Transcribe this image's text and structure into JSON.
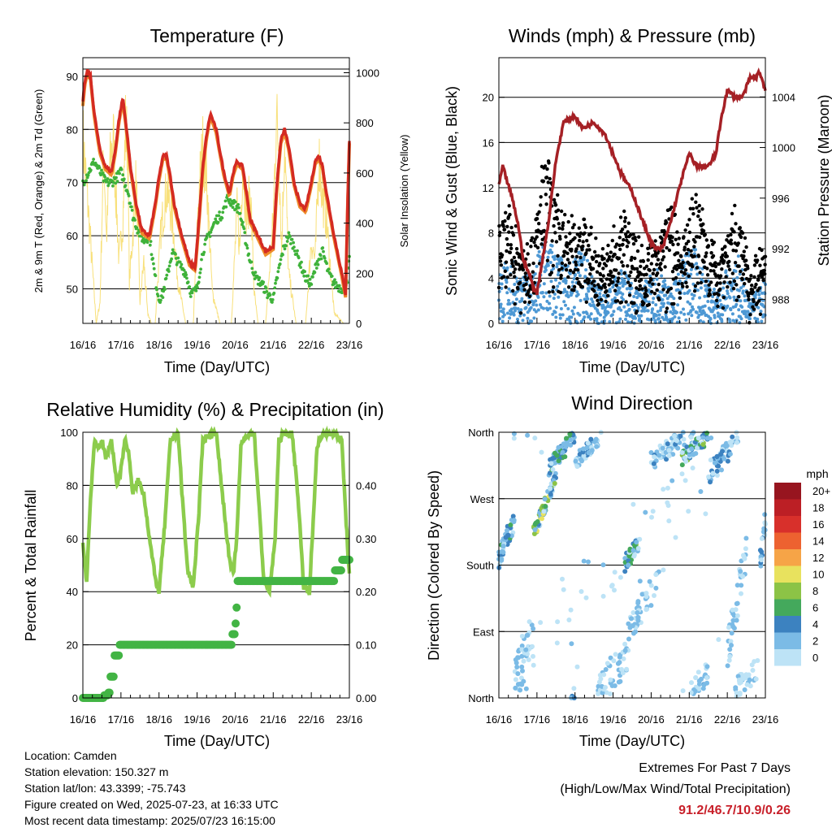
{
  "x_ticks": [
    "16/16",
    "17/16",
    "18/16",
    "19/16",
    "20/16",
    "21/16",
    "22/16",
    "23/16"
  ],
  "colors": {
    "temp_2m": "#d42a22",
    "temp_9m": "#ee8a2a",
    "dewpoint": "#3fb23a",
    "insolation": "#f8e07a",
    "wind_speed": "#4d98d4",
    "wind_gust": "#000000",
    "pressure": "#a52025",
    "humidity": "#8ccc4c",
    "rainfall": "#42b444"
  },
  "chart_data": [
    {
      "id": "temperature",
      "type": "line",
      "title": "Temperature (F)",
      "xlabel": "Time (Day/UTC)",
      "ylabel": "2m & 9m T (Red, Orange) & 2m Td (Green)",
      "y2label": "Solar Insolation (Yellow)",
      "ylim": [
        43.5,
        93.5
      ],
      "yticks": [
        50,
        60,
        70,
        80,
        90
      ],
      "y2lim": [
        0,
        1060
      ],
      "y2ticks": [
        0,
        200,
        400,
        600,
        800,
        1000
      ],
      "xlim": [
        0,
        7
      ],
      "grid": true,
      "series": [
        {
          "key": "t2m",
          "x": [
            0,
            0.05,
            0.12,
            0.2,
            0.3,
            0.45,
            0.6,
            0.75,
            0.85,
            0.95,
            1.05,
            1.15,
            1.25,
            1.4,
            1.55,
            1.75,
            1.9,
            2.0,
            2.1,
            2.2,
            2.3,
            2.4,
            2.6,
            2.8,
            2.95,
            3.05,
            3.15,
            3.25,
            3.35,
            3.5,
            3.7,
            3.85,
            3.95,
            4.05,
            4.2,
            4.3,
            4.4,
            4.6,
            4.8,
            5.0,
            5.1,
            5.2,
            5.3,
            5.4,
            5.55,
            5.7,
            5.85,
            6.0,
            6.1,
            6.2,
            6.3,
            6.4,
            6.6,
            6.8,
            6.9,
            6.95,
            7.0
          ],
          "y": [
            85,
            89,
            91,
            90,
            83,
            76,
            73,
            72,
            76,
            82,
            86,
            80,
            73,
            66,
            61,
            60,
            66,
            71,
            75,
            75,
            71,
            66,
            60,
            55,
            54,
            63,
            73,
            79,
            83,
            80,
            72,
            68,
            72,
            74,
            73,
            68,
            63,
            60,
            57,
            58,
            70,
            78,
            80,
            77,
            70,
            66,
            65,
            70,
            74,
            75,
            73,
            68,
            60,
            53,
            49,
            65,
            78
          ]
        },
        {
          "key": "td",
          "x": [
            0,
            0.15,
            0.3,
            0.45,
            0.6,
            0.75,
            0.9,
            1.0,
            1.1,
            1.2,
            1.3,
            1.45,
            1.6,
            1.75,
            1.9,
            2.0,
            2.1,
            2.2,
            2.35,
            2.5,
            2.7,
            2.85,
            3.0,
            3.15,
            3.3,
            3.5,
            3.65,
            3.8,
            3.95,
            4.1,
            4.25,
            4.4,
            4.55,
            4.7,
            4.85,
            5.0,
            5.1,
            5.25,
            5.4,
            5.55,
            5.7,
            5.85,
            6.0,
            6.15,
            6.3,
            6.45,
            6.6,
            6.8,
            6.95,
            7.0
          ],
          "y": [
            70,
            72,
            74,
            72,
            70,
            70,
            71,
            72,
            70,
            68,
            64,
            61,
            59,
            60,
            52,
            48,
            49,
            52,
            57,
            55,
            53,
            49,
            50,
            57,
            60,
            63,
            64,
            67,
            66,
            65,
            60,
            55,
            52,
            51,
            49,
            48,
            52,
            57,
            60,
            58,
            55,
            52,
            51,
            55,
            57,
            53,
            51,
            50,
            52,
            56
          ]
        },
        {
          "key": "sol",
          "x": [
            0,
            0.2,
            0.35,
            0.45,
            0.5,
            0.55,
            0.62,
            0.7,
            0.8,
            0.95,
            1.05,
            1.12,
            1.18,
            1.22,
            1.3,
            1.4,
            1.5,
            1.6,
            1.7,
            1.8,
            1.9,
            2.05,
            2.2,
            2.35,
            2.5,
            2.7,
            2.9,
            3.05,
            3.15,
            3.25,
            3.4,
            3.6,
            3.9,
            4.05,
            4.12,
            4.2,
            4.3,
            4.4,
            4.5,
            4.6,
            4.8,
            5.0,
            5.08,
            5.15,
            5.22,
            5.3,
            5.4,
            5.6,
            5.85,
            6.0,
            6.1,
            6.2,
            6.3,
            6.4,
            6.6,
            6.85,
            7.0
          ],
          "y": [
            900,
            400,
            0,
            100,
            500,
            850,
            400,
            750,
            900,
            300,
            500,
            950,
            850,
            200,
            400,
            700,
            100,
            300,
            50,
            0,
            0,
            450,
            650,
            500,
            200,
            0,
            0,
            650,
            850,
            700,
            150,
            0,
            0,
            550,
            350,
            800,
            500,
            650,
            150,
            0,
            0,
            500,
            1000,
            850,
            350,
            900,
            250,
            0,
            0,
            400,
            300,
            800,
            600,
            500,
            50,
            0,
            0
          ]
        }
      ]
    },
    {
      "id": "winds",
      "type": "scatter",
      "title": "Winds (mph) & Pressure (mb)",
      "xlabel": "Time (Day/UTC)",
      "ylabel": "Sonic Wind & Gust (Blue, Black)",
      "y2label": "Station Pressure (Maroon)",
      "ylim": [
        0,
        23.5
      ],
      "yticks": [
        0,
        4,
        8,
        12,
        16,
        20
      ],
      "y2lim": [
        986.1,
        1007.1
      ],
      "y2ticks": [
        988,
        992,
        996,
        1000,
        1004
      ],
      "xlim": [
        0,
        7
      ],
      "grid": true,
      "series": [
        {
          "key": "wind_env",
          "x": [
            0,
            0.3,
            0.6,
            0.9,
            1.1,
            1.3,
            1.6,
            1.9,
            2.2,
            2.5,
            2.8,
            3.0,
            3.3,
            3.6,
            3.9,
            4.2,
            4.5,
            4.8,
            5.1,
            5.4,
            5.7,
            6.0,
            6.3,
            6.6,
            7.0
          ],
          "y": [
            5,
            6,
            4,
            5,
            7,
            8,
            6,
            5,
            7,
            4,
            3,
            4,
            5,
            3,
            4,
            5,
            3,
            6,
            7,
            5,
            3,
            5,
            6,
            2,
            4
          ]
        },
        {
          "key": "gust_env",
          "x": [
            0,
            0.3,
            0.6,
            0.9,
            1.1,
            1.2,
            1.4,
            1.6,
            1.9,
            2.2,
            2.5,
            2.8,
            3.0,
            3.3,
            3.6,
            3.9,
            4.2,
            4.5,
            4.8,
            5.1,
            5.4,
            5.7,
            6.0,
            6.3,
            6.6,
            7.0
          ],
          "y": [
            9,
            10,
            7,
            8,
            13,
            15,
            13,
            10,
            9,
            10,
            7,
            6,
            8,
            10,
            8,
            6,
            8,
            11,
            6,
            12,
            10,
            6,
            9,
            10,
            5,
            7
          ]
        },
        {
          "key": "pressure",
          "x": [
            0,
            0.1,
            0.2,
            0.35,
            0.5,
            0.65,
            0.8,
            0.9,
            1.0,
            1.3,
            1.5,
            1.7,
            2.0,
            2.2,
            2.5,
            2.8,
            3.0,
            3.2,
            3.5,
            3.8,
            4.0,
            4.1,
            4.3,
            4.5,
            4.8,
            5.0,
            5.2,
            5.5,
            5.7,
            5.85,
            6.0,
            6.2,
            6.4,
            6.6,
            6.75,
            6.85,
            7.0
          ],
          "y": [
            997,
            998.5,
            997.5,
            996,
            994,
            991,
            990,
            989,
            988.5,
            994,
            999,
            1002,
            1002.5,
            1001.5,
            1002,
            1001,
            999.5,
            998,
            996.5,
            994,
            992.5,
            992,
            992,
            994,
            997.5,
            999.5,
            998.5,
            998.5,
            999.5,
            1002.5,
            1004.5,
            1004,
            1004,
            1005.5,
            1005.5,
            1006,
            1004.5
          ]
        }
      ]
    },
    {
      "id": "humidity",
      "type": "line",
      "title": "Relative Humidity (%) & Precipitation (in)",
      "xlabel": "Time (Day/UTC)",
      "ylabel": "Percent & Total Rainfall",
      "ylim": [
        0,
        100
      ],
      "yticks": [
        0,
        20,
        40,
        60,
        80,
        100
      ],
      "y2lim": [
        0,
        0.5
      ],
      "y2ticks": [
        "0.00",
        "0.10",
        "0.20",
        "0.30",
        "0.40"
      ],
      "xlim": [
        0,
        7
      ],
      "grid": true,
      "series": [
        {
          "key": "rh",
          "x": [
            0,
            0.1,
            0.2,
            0.3,
            0.4,
            0.5,
            0.6,
            0.75,
            0.9,
            1.0,
            1.1,
            1.2,
            1.3,
            1.45,
            1.6,
            1.75,
            1.9,
            2.0,
            2.15,
            2.3,
            2.5,
            2.6,
            2.75,
            2.9,
            3.05,
            3.15,
            3.3,
            3.5,
            3.7,
            3.85,
            3.95,
            4.05,
            4.15,
            4.3,
            4.5,
            4.6,
            4.75,
            4.9,
            5.05,
            5.15,
            5.3,
            5.5,
            5.65,
            5.8,
            5.95,
            6.05,
            6.15,
            6.3,
            6.5,
            6.65,
            6.8,
            6.9,
            7.0
          ],
          "y": [
            58,
            44,
            75,
            96,
            94,
            97,
            90,
            97,
            80,
            86,
            97,
            93,
            77,
            82,
            77,
            60,
            45,
            40,
            65,
            97,
            100,
            78,
            48,
            42,
            70,
            97,
            99,
            100,
            72,
            52,
            46,
            62,
            95,
            99,
            100,
            78,
            45,
            40,
            60,
            97,
            100,
            99,
            76,
            42,
            40,
            66,
            95,
            99,
            100,
            99,
            97,
            70,
            46
          ]
        },
        {
          "key": "rain",
          "x": [
            0,
            0.45,
            0.55,
            0.65,
            0.7,
            0.72,
            0.78,
            0.82,
            0.85,
            0.95,
            1.2,
            2.0,
            3.0,
            3.9,
            3.93,
            4.0,
            4.02,
            4.05,
            4.5,
            5.0,
            6.0,
            6.3,
            6.6,
            6.75,
            6.8,
            7.0
          ],
          "y": [
            0,
            0,
            0.005,
            0.01,
            0.01,
            0.04,
            0.04,
            0.08,
            0.08,
            0.1,
            0.1,
            0.1,
            0.1,
            0.1,
            0.12,
            0.14,
            0.17,
            0.22,
            0.22,
            0.22,
            0.22,
            0.22,
            0.24,
            0.24,
            0.26,
            0.26
          ]
        }
      ]
    },
    {
      "id": "direction",
      "type": "scatter",
      "title": "Wind Direction",
      "xlabel": "Time (Day/UTC)",
      "ylabel": "Direction (Colored By Speed)",
      "yticks": [
        "North",
        "East",
        "South",
        "West",
        "North"
      ],
      "xlim": [
        0,
        7
      ],
      "grid": true,
      "legend": {
        "title": "mph",
        "placement": "right",
        "labels": [
          "20+",
          "18",
          "16",
          "14",
          "12",
          "10",
          "8",
          "6",
          "4",
          "2",
          "0"
        ],
        "colors": [
          "#97151f",
          "#bc1f25",
          "#d8302b",
          "#ed6230",
          "#f6a447",
          "#e8e25e",
          "#8cc346",
          "#44a95c",
          "#3c82c0",
          "#7bbbe6",
          "#bde3f6"
        ]
      }
    }
  ],
  "info": {
    "location": "Location: Camden",
    "elevation": "Station elevation: 150.327 m",
    "latlon": "Station lat/lon: 43.3399; -75.743",
    "created": "Figure created on Wed, 2025-07-23, at 16:33 UTC",
    "recent": "Most recent data timestamp: 2025/07/23 16:15:00"
  },
  "extremes": {
    "heading": "Extremes For Past 7 Days",
    "subheading": "(High/Low/Max Wind/Total Precipitation)",
    "values": "91.2/46.7/10.9/0.26"
  }
}
